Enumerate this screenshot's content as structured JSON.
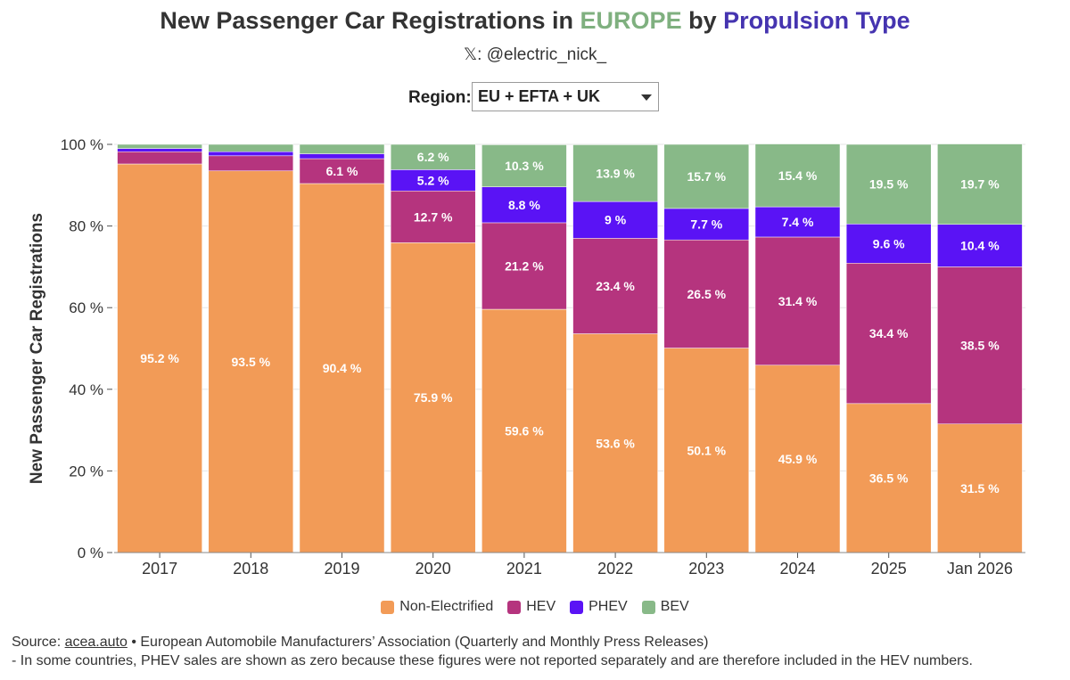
{
  "title": {
    "part1": "New Passenger Car Registrations in ",
    "highlight1": "EUROPE",
    "part2": " by ",
    "highlight2": "Propulsion Type",
    "highlight1_color": "#7fb07f",
    "highlight2_color": "#4534b0"
  },
  "subtitle": "𝕏: @electric_nick_",
  "region": {
    "label": "Region:",
    "selected": "EU + EFTA + UK"
  },
  "colors": {
    "Non-Electrified": "#f29b57",
    "HEV": "#b5347e",
    "PHEV": "#5a13f5",
    "BEV": "#88b988"
  },
  "legend": [
    {
      "name": "Non-Electrified",
      "color": "#f29b57"
    },
    {
      "name": "HEV",
      "color": "#b5347e"
    },
    {
      "name": "PHEV",
      "color": "#5a13f5"
    },
    {
      "name": "BEV",
      "color": "#88b988"
    }
  ],
  "source": {
    "prefix": "Source: ",
    "link": "acea.auto",
    "rest": " • European Automobile Manufacturers’ Association (Quarterly and Monthly Press Releases)",
    "note": "- In some countries, PHEV sales are shown as zero because these figures were not reported separately and are therefore included in the HEV numbers."
  },
  "chart_data": {
    "type": "bar",
    "stacked": true,
    "categories": [
      "2017",
      "2018",
      "2019",
      "2020",
      "2021",
      "2022",
      "2023",
      "2024",
      "2025",
      "Jan 2026"
    ],
    "series": [
      {
        "name": "Non-Electrified",
        "values": [
          95.2,
          93.5,
          90.4,
          75.9,
          59.6,
          53.6,
          50.1,
          45.9,
          36.5,
          31.5
        ],
        "labels": [
          "95.2 %",
          "93.5 %",
          "90.4 %",
          "75.9 %",
          "59.6 %",
          "53.6 %",
          "50.1 %",
          "45.9 %",
          "36.5 %",
          "31.5 %"
        ]
      },
      {
        "name": "HEV",
        "values": [
          3.0,
          3.7,
          6.1,
          12.7,
          21.2,
          23.4,
          26.5,
          31.4,
          34.4,
          38.5
        ],
        "labels": [
          "",
          "",
          "6.1 %",
          "12.7 %",
          "21.2 %",
          "23.4 %",
          "26.5 %",
          "31.4 %",
          "34.4 %",
          "38.5 %"
        ]
      },
      {
        "name": "PHEV",
        "values": [
          0.8,
          1.0,
          1.2,
          5.2,
          8.8,
          9.0,
          7.7,
          7.4,
          9.6,
          10.4
        ],
        "labels": [
          "",
          "",
          "",
          "5.2 %",
          "8.8 %",
          "9 %",
          "7.7 %",
          "7.4 %",
          "9.6 %",
          "10.4 %"
        ]
      },
      {
        "name": "BEV",
        "values": [
          1.0,
          1.8,
          2.3,
          6.2,
          10.3,
          13.9,
          15.7,
          15.4,
          19.5,
          19.7
        ],
        "labels": [
          "",
          "",
          "",
          "6.2 %",
          "10.3 %",
          "13.9 %",
          "15.7 %",
          "15.4 %",
          "19.5 %",
          "19.7 %"
        ]
      }
    ],
    "ylabel": "New Passenger Car Registrations",
    "ylim": [
      0,
      100
    ],
    "yticks": [
      0,
      20,
      40,
      60,
      80,
      100
    ],
    "ytick_labels": [
      "0 %",
      "20 %",
      "40 %",
      "60 %",
      "80 %",
      "100 %"
    ],
    "grid": true,
    "legend_position": "bottom"
  }
}
